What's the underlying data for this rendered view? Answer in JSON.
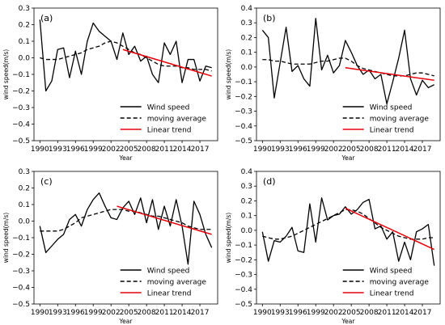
{
  "chart_data": [
    {
      "type": "line",
      "panel_label": "(a)",
      "xlabel": "Year",
      "ylabel": "wind speed(m/s)",
      "xlim": [
        1989,
        2020
      ],
      "ylim": [
        -0.5,
        0.3
      ],
      "grid": false,
      "legend_position": "lower-right",
      "x_ticks": [
        "1990",
        "1993",
        "1996",
        "1999",
        "2002",
        "2005",
        "2008",
        "2011",
        "2014",
        "2017"
      ],
      "y_ticks": [
        "0.3",
        "0.2",
        "0.1",
        "0.0",
        "−0.1",
        "−0.2",
        "−0.3",
        "−0.4",
        "−0.5"
      ],
      "series": [
        {
          "name": "Wind speed",
          "style": "solid",
          "color": "#000000",
          "x": [
            1990,
            1991,
            1992,
            1993,
            1994,
            1995,
            1996,
            1997,
            1998,
            1999,
            2000,
            2001,
            2002,
            2003,
            2004,
            2005,
            2006,
            2007,
            2008,
            2009,
            2010,
            2011,
            2012,
            2013,
            2014,
            2015,
            2016,
            2017,
            2018,
            2019
          ],
          "y": [
            0.23,
            -0.2,
            -0.14,
            0.05,
            0.06,
            -0.12,
            0.04,
            -0.1,
            0.1,
            0.21,
            0.16,
            0.13,
            0.1,
            -0.01,
            0.15,
            0.02,
            0.07,
            -0.02,
            0.01,
            -0.1,
            -0.15,
            0.09,
            0.02,
            0.1,
            -0.15,
            -0.01,
            -0.01,
            -0.14,
            -0.05,
            -0.06
          ]
        },
        {
          "name": "moving average",
          "style": "dashed",
          "color": "#000000",
          "x": [
            1990,
            1991,
            1992,
            1993,
            1994,
            1995,
            1996,
            1997,
            1998,
            1999,
            2000,
            2001,
            2002,
            2003,
            2004,
            2005,
            2006,
            2007,
            2008,
            2009,
            2010,
            2011,
            2012,
            2013,
            2014,
            2015,
            2016,
            2017,
            2018,
            2019
          ],
          "y": [
            0.0,
            -0.01,
            -0.01,
            -0.01,
            0.0,
            0.01,
            0.02,
            0.03,
            0.05,
            0.06,
            0.07,
            0.09,
            0.1,
            0.09,
            0.07,
            0.05,
            0.03,
            0.02,
            0.0,
            -0.02,
            -0.04,
            -0.05,
            -0.05,
            -0.05,
            -0.06,
            -0.06,
            -0.07,
            -0.07,
            -0.07,
            -0.08
          ]
        },
        {
          "name": "Linear trend",
          "style": "solid",
          "color": "#e8000b",
          "x": [
            2004,
            2019
          ],
          "y": [
            0.05,
            -0.11
          ]
        }
      ]
    },
    {
      "type": "line",
      "panel_label": "(b)",
      "xlabel": "Year",
      "ylabel": "wind speed(m/s)",
      "xlim": [
        1989,
        2020
      ],
      "ylim": [
        -0.5,
        0.4
      ],
      "grid": false,
      "legend_position": "lower-right",
      "x_ticks": [
        "1990",
        "1993",
        "1996",
        "1999",
        "2002",
        "2005",
        "2008",
        "2011",
        "2014",
        "2017"
      ],
      "y_ticks": [
        "0.4",
        "0.3",
        "0.2",
        "0.1",
        "0.0",
        "−0.1",
        "−0.2",
        "−0.3",
        "−0.4",
        "−0.5"
      ],
      "series": [
        {
          "name": "Wind speed",
          "style": "solid",
          "color": "#000000",
          "x": [
            1990,
            1991,
            1992,
            1993,
            1994,
            1995,
            1996,
            1997,
            1998,
            1999,
            2000,
            2001,
            2002,
            2003,
            2004,
            2005,
            2006,
            2007,
            2008,
            2009,
            2010,
            2011,
            2012,
            2013,
            2014,
            2015,
            2016,
            2017,
            2018,
            2019
          ],
          "y": [
            0.25,
            0.2,
            -0.21,
            0.03,
            0.27,
            -0.03,
            0.01,
            -0.08,
            -0.13,
            0.33,
            -0.02,
            0.08,
            -0.04,
            0.01,
            0.18,
            0.1,
            0.01,
            -0.05,
            -0.02,
            -0.08,
            -0.05,
            -0.25,
            -0.1,
            0.06,
            0.25,
            -0.08,
            -0.19,
            -0.09,
            -0.14,
            -0.12
          ]
        },
        {
          "name": "moving average",
          "style": "dashed",
          "color": "#000000",
          "x": [
            1990,
            1991,
            1992,
            1993,
            1994,
            1995,
            1996,
            1997,
            1998,
            1999,
            2000,
            2001,
            2002,
            2003,
            2004,
            2005,
            2006,
            2007,
            2008,
            2009,
            2010,
            2011,
            2012,
            2013,
            2014,
            2015,
            2016,
            2017,
            2018,
            2019
          ],
          "y": [
            0.05,
            0.05,
            0.04,
            0.04,
            0.03,
            0.02,
            0.02,
            0.02,
            0.02,
            0.03,
            0.04,
            0.04,
            0.05,
            0.06,
            0.06,
            0.04,
            0.01,
            -0.01,
            -0.02,
            -0.03,
            -0.04,
            -0.05,
            -0.06,
            -0.06,
            -0.06,
            -0.05,
            -0.04,
            -0.04,
            -0.05,
            -0.06
          ]
        },
        {
          "name": "Linear trend",
          "style": "solid",
          "color": "#e8000b",
          "x": [
            2004,
            2019
          ],
          "y": [
            -0.005,
            -0.09
          ]
        }
      ]
    },
    {
      "type": "line",
      "panel_label": "(c)",
      "xlabel": "Year",
      "ylabel": "wind speed(m/s)",
      "xlim": [
        1989,
        2020
      ],
      "ylim": [
        -0.5,
        0.3
      ],
      "grid": false,
      "legend_position": "lower-right",
      "x_ticks": [
        "1990",
        "1993",
        "1996",
        "1999",
        "2002",
        "2005",
        "2008",
        "2011",
        "2014",
        "2017"
      ],
      "y_ticks": [
        "0.3",
        "0.2",
        "0.1",
        "0.0",
        "−0.1",
        "−0.2",
        "−0.3",
        "−0.4",
        "−0.5"
      ],
      "series": [
        {
          "name": "Wind speed",
          "style": "solid",
          "color": "#000000",
          "x": [
            1990,
            1991,
            1992,
            1993,
            1994,
            1995,
            1996,
            1997,
            1998,
            1999,
            2000,
            2001,
            2002,
            2003,
            2004,
            2005,
            2006,
            2007,
            2008,
            2009,
            2010,
            2011,
            2012,
            2013,
            2014,
            2015,
            2016,
            2017,
            2018,
            2019
          ],
          "y": [
            -0.03,
            -0.19,
            -0.15,
            -0.11,
            -0.08,
            0.01,
            0.04,
            -0.03,
            0.07,
            0.13,
            0.17,
            0.09,
            0.02,
            0.01,
            0.08,
            0.12,
            0.04,
            0.14,
            -0.01,
            0.13,
            -0.05,
            0.09,
            -0.03,
            0.13,
            -0.03,
            -0.26,
            0.12,
            0.04,
            -0.08,
            -0.16
          ]
        },
        {
          "name": "moving average",
          "style": "dashed",
          "color": "#000000",
          "x": [
            1990,
            1991,
            1992,
            1993,
            1994,
            1995,
            1996,
            1997,
            1998,
            1999,
            2000,
            2001,
            2002,
            2003,
            2004,
            2005,
            2006,
            2007,
            2008,
            2009,
            2010,
            2011,
            2012,
            2013,
            2014,
            2015,
            2016,
            2017,
            2018,
            2019
          ],
          "y": [
            -0.06,
            -0.06,
            -0.06,
            -0.06,
            -0.05,
            -0.03,
            -0.01,
            0.02,
            0.03,
            0.04,
            0.05,
            0.06,
            0.07,
            0.07,
            0.07,
            0.06,
            0.06,
            0.05,
            0.04,
            0.03,
            0.03,
            0.02,
            0.01,
            0.0,
            -0.01,
            -0.03,
            -0.04,
            -0.05,
            -0.05,
            -0.05
          ]
        },
        {
          "name": "Linear trend",
          "style": "solid",
          "color": "#e8000b",
          "x": [
            2003,
            2019
          ],
          "y": [
            0.09,
            -0.08
          ]
        }
      ]
    },
    {
      "type": "line",
      "panel_label": "(d)",
      "xlabel": "Year",
      "ylabel": "wind speed(m/s)",
      "xlim": [
        1989,
        2020
      ],
      "ylim": [
        -0.5,
        0.4
      ],
      "grid": false,
      "legend_position": "lower-right",
      "x_ticks": [
        "1990",
        "1993",
        "1996",
        "1999",
        "2002",
        "2005",
        "2008",
        "2011",
        "2014",
        "2017"
      ],
      "y_ticks": [
        "0.4",
        "0.3",
        "0.2",
        "0.1",
        "0.0",
        "−0.1",
        "−0.2",
        "−0.3",
        "−0.4",
        "−0.5"
      ],
      "series": [
        {
          "name": "Wind speed",
          "style": "solid",
          "color": "#000000",
          "x": [
            1990,
            1991,
            1992,
            1993,
            1994,
            1995,
            1996,
            1997,
            1998,
            1999,
            2000,
            2001,
            2002,
            2003,
            2004,
            2005,
            2006,
            2007,
            2008,
            2009,
            2010,
            2011,
            2012,
            2013,
            2014,
            2015,
            2016,
            2017,
            2018,
            2019
          ],
          "y": [
            -0.01,
            -0.21,
            -0.07,
            -0.08,
            -0.04,
            0.02,
            -0.14,
            -0.15,
            0.18,
            -0.08,
            0.22,
            0.07,
            0.1,
            0.11,
            0.16,
            0.11,
            0.14,
            0.19,
            0.21,
            0.01,
            0.03,
            -0.06,
            -0.01,
            -0.21,
            -0.08,
            -0.2,
            -0.01,
            0.01,
            0.04,
            -0.24
          ]
        },
        {
          "name": "moving average",
          "style": "dashed",
          "color": "#000000",
          "x": [
            1990,
            1991,
            1992,
            1993,
            1994,
            1995,
            1996,
            1997,
            1998,
            1999,
            2000,
            2001,
            2002,
            2003,
            2004,
            2005,
            2006,
            2007,
            2008,
            2009,
            2010,
            2011,
            2012,
            2013,
            2014,
            2015,
            2016,
            2017,
            2018,
            2019
          ],
          "y": [
            -0.04,
            -0.05,
            -0.06,
            -0.06,
            -0.05,
            -0.04,
            -0.02,
            0.0,
            0.02,
            0.04,
            0.06,
            0.08,
            0.1,
            0.12,
            0.14,
            0.14,
            0.13,
            0.11,
            0.08,
            0.05,
            0.02,
            0.0,
            -0.02,
            -0.04,
            -0.05,
            -0.06,
            -0.06,
            -0.06,
            -0.05,
            -0.05
          ]
        },
        {
          "name": "Linear trend",
          "style": "solid",
          "color": "#e8000b",
          "x": [
            2004,
            2019
          ],
          "y": [
            0.15,
            -0.13
          ]
        }
      ]
    }
  ]
}
